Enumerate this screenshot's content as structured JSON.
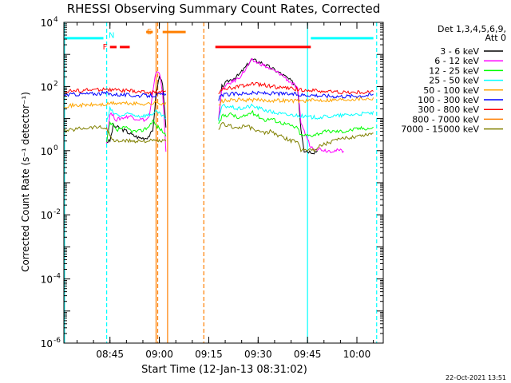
{
  "chart_data": {
    "type": "line",
    "title": "RHESSI Observing Summary Count Rates, Corrected",
    "xlabel": "Start Time (12-Jan-13 08:31:02)",
    "ylabel": "Corrected Count Rate (s⁻¹ detector⁻¹)",
    "x_unit": "minutes after 08:31:02 on 12-Jan-13",
    "xlim": [
      0,
      97
    ],
    "ylim": [
      1e-06,
      10000
    ],
    "yscale": "log",
    "xticks": [
      {
        "label": "08:45",
        "x": 14
      },
      {
        "label": "09:00",
        "x": 29
      },
      {
        "label": "09:15",
        "x": 44
      },
      {
        "label": "09:30",
        "x": 59
      },
      {
        "label": "09:45",
        "x": 74
      },
      {
        "label": "10:00",
        "x": 89
      }
    ],
    "yticks": [
      {
        "base": "10",
        "exp": "4",
        "value": 10000
      },
      {
        "base": "10",
        "exp": "2",
        "value": 100
      },
      {
        "base": "10",
        "exp": "0",
        "value": 1
      },
      {
        "base": "10",
        "exp": "-2",
        "value": 0.01
      },
      {
        "base": "10",
        "exp": "-4",
        "value": 0.0001
      },
      {
        "base": "10",
        "exp": "-6",
        "value": 1e-06
      }
    ],
    "legend_header": [
      "Det 1,3,4,5,6,9,",
      "Att 0"
    ],
    "legend_position": "right",
    "grid": false,
    "timestamp": "22-Oct-2021 13:51",
    "series": [
      {
        "name": "3 - 6 keV",
        "color": "#000000",
        "points": [
          [
            13,
            1.9
          ],
          [
            14,
            2
          ],
          [
            15,
            6
          ],
          [
            17,
            5
          ],
          [
            19,
            4
          ],
          [
            21,
            3
          ],
          [
            23,
            2.5
          ],
          [
            25,
            2.5
          ],
          [
            26,
            3
          ],
          [
            27,
            4
          ],
          [
            28,
            60
          ],
          [
            29,
            200
          ],
          [
            30,
            130
          ],
          [
            31,
            5
          ],
          [
            47,
            8
          ],
          [
            48,
            100
          ],
          [
            50,
            150
          ],
          [
            53,
            220
          ],
          [
            55,
            380
          ],
          [
            57,
            700
          ],
          [
            60,
            550
          ],
          [
            62,
            420
          ],
          [
            64,
            330
          ],
          [
            66,
            250
          ],
          [
            68,
            180
          ],
          [
            70,
            120
          ],
          [
            71,
            90
          ],
          [
            72,
            5
          ],
          [
            73,
            1
          ],
          [
            76,
            0.9
          ],
          [
            77,
            1
          ]
        ]
      },
      {
        "name": "6 - 12 keV",
        "color": "#ff00ff",
        "points": [
          [
            13,
            1.9
          ],
          [
            14,
            15
          ],
          [
            15,
            12
          ],
          [
            16,
            9
          ],
          [
            17,
            10
          ],
          [
            20,
            12
          ],
          [
            22,
            10
          ],
          [
            25,
            9
          ],
          [
            26,
            12
          ],
          [
            27,
            60
          ],
          [
            28,
            300
          ],
          [
            29,
            280
          ],
          [
            30,
            60
          ],
          [
            31,
            1
          ],
          [
            47,
            12
          ],
          [
            48,
            80
          ],
          [
            50,
            120
          ],
          [
            53,
            180
          ],
          [
            55,
            320
          ],
          [
            57,
            650
          ],
          [
            60,
            500
          ],
          [
            62,
            380
          ],
          [
            64,
            300
          ],
          [
            66,
            240
          ],
          [
            68,
            160
          ],
          [
            70,
            110
          ],
          [
            71,
            80
          ],
          [
            72,
            8
          ],
          [
            73,
            4
          ],
          [
            75,
            1.3
          ],
          [
            80,
            1
          ],
          [
            85,
            1
          ]
        ]
      },
      {
        "name": "12 - 25 keV",
        "color": "#00ff00",
        "points": [
          [
            0,
            1.7
          ],
          [
            13,
            1.8
          ],
          [
            14,
            7
          ],
          [
            15,
            6
          ],
          [
            16,
            4
          ],
          [
            17,
            5
          ],
          [
            19,
            5
          ],
          [
            21,
            4
          ],
          [
            23,
            4
          ],
          [
            25,
            5
          ],
          [
            26,
            6
          ],
          [
            27,
            9
          ],
          [
            28,
            6
          ],
          [
            29,
            5
          ],
          [
            30,
            4
          ],
          [
            31,
            3
          ],
          [
            47,
            6
          ],
          [
            48,
            12
          ],
          [
            51,
            14
          ],
          [
            53,
            10
          ],
          [
            55,
            12
          ],
          [
            57,
            16
          ],
          [
            59,
            12
          ],
          [
            61,
            9
          ],
          [
            63,
            10
          ],
          [
            65,
            8
          ],
          [
            67,
            7
          ],
          [
            69,
            6
          ],
          [
            71,
            5
          ],
          [
            72,
            3
          ],
          [
            75,
            3
          ],
          [
            80,
            4
          ],
          [
            85,
            4
          ],
          [
            90,
            5
          ],
          [
            94,
            5
          ]
        ]
      },
      {
        "name": "25 - 50 keV",
        "color": "#00ffff",
        "points": [
          [
            0,
            6
          ],
          [
            13,
            8
          ],
          [
            14,
            20
          ],
          [
            15,
            15
          ],
          [
            17,
            12
          ],
          [
            20,
            14
          ],
          [
            23,
            12
          ],
          [
            26,
            13
          ],
          [
            28,
            16
          ],
          [
            29,
            14
          ],
          [
            30,
            12
          ],
          [
            31,
            10
          ],
          [
            47,
            8
          ],
          [
            48,
            25
          ],
          [
            50,
            24
          ],
          [
            53,
            20
          ],
          [
            55,
            22
          ],
          [
            57,
            25
          ],
          [
            60,
            20
          ],
          [
            63,
            16
          ],
          [
            66,
            14
          ],
          [
            68,
            13
          ],
          [
            70,
            13
          ],
          [
            72,
            12
          ],
          [
            74,
            11
          ],
          [
            78,
            11
          ],
          [
            82,
            12
          ],
          [
            86,
            13
          ],
          [
            90,
            14
          ],
          [
            94,
            15
          ]
        ]
      },
      {
        "name": "50 - 100 keV",
        "color": "#ffa500",
        "points": [
          [
            0,
            25
          ],
          [
            5,
            26
          ],
          [
            10,
            27
          ],
          [
            13,
            27
          ],
          [
            14,
            30
          ],
          [
            18,
            30
          ],
          [
            22,
            29
          ],
          [
            26,
            29
          ],
          [
            28,
            31
          ],
          [
            30,
            30
          ],
          [
            31,
            29
          ],
          [
            47,
            24
          ],
          [
            48,
            35
          ],
          [
            53,
            38
          ],
          [
            57,
            38
          ],
          [
            61,
            37
          ],
          [
            66,
            37
          ],
          [
            70,
            36
          ],
          [
            74,
            36
          ],
          [
            78,
            38
          ],
          [
            82,
            38
          ],
          [
            86,
            40
          ],
          [
            90,
            42
          ],
          [
            94,
            42
          ]
        ]
      },
      {
        "name": "100 - 300 keV",
        "color": "#0000ff",
        "points": [
          [
            0,
            55
          ],
          [
            5,
            58
          ],
          [
            10,
            60
          ],
          [
            13,
            62
          ],
          [
            14,
            58
          ],
          [
            18,
            55
          ],
          [
            22,
            52
          ],
          [
            26,
            52
          ],
          [
            28,
            54
          ],
          [
            30,
            55
          ],
          [
            31,
            55
          ],
          [
            47,
            40
          ],
          [
            48,
            55
          ],
          [
            53,
            60
          ],
          [
            57,
            62
          ],
          [
            61,
            62
          ],
          [
            65,
            60
          ],
          [
            69,
            58
          ],
          [
            72,
            55
          ],
          [
            75,
            55
          ],
          [
            78,
            52
          ],
          [
            82,
            50
          ],
          [
            86,
            50
          ],
          [
            90,
            52
          ],
          [
            94,
            55
          ]
        ]
      },
      {
        "name": "300 - 800 keV",
        "color": "#ff0000",
        "points": [
          [
            0,
            70
          ],
          [
            5,
            75
          ],
          [
            10,
            80
          ],
          [
            13,
            85
          ],
          [
            14,
            78
          ],
          [
            18,
            75
          ],
          [
            22,
            70
          ],
          [
            26,
            65
          ],
          [
            28,
            68
          ],
          [
            30,
            70
          ],
          [
            31,
            70
          ],
          [
            47,
            60
          ],
          [
            48,
            80
          ],
          [
            53,
            100
          ],
          [
            57,
            120
          ],
          [
            61,
            110
          ],
          [
            65,
            95
          ],
          [
            69,
            85
          ],
          [
            72,
            80
          ],
          [
            75,
            75
          ],
          [
            78,
            72
          ],
          [
            82,
            68
          ],
          [
            86,
            65
          ],
          [
            90,
            65
          ],
          [
            94,
            68
          ]
        ]
      },
      {
        "name": "800 - 7000 keV",
        "color": "#ff7f00",
        "points": []
      },
      {
        "name": "7000 - 15000 keV",
        "color": "#808000",
        "points": [
          [
            0,
            4
          ],
          [
            5,
            5
          ],
          [
            10,
            5.5
          ],
          [
            13,
            5
          ],
          [
            14,
            3
          ],
          [
            15,
            2
          ],
          [
            17,
            2
          ],
          [
            19,
            2
          ],
          [
            21,
            2
          ],
          [
            23,
            2
          ],
          [
            25,
            2
          ],
          [
            27,
            2
          ],
          [
            29,
            2
          ],
          [
            31,
            2
          ],
          [
            47,
            4
          ],
          [
            48,
            7
          ],
          [
            50,
            6
          ],
          [
            53,
            5
          ],
          [
            55,
            6
          ],
          [
            57,
            5
          ],
          [
            59,
            4
          ],
          [
            61,
            3.5
          ],
          [
            63,
            4
          ],
          [
            65,
            3
          ],
          [
            67,
            2.5
          ],
          [
            69,
            2
          ],
          [
            71,
            2
          ],
          [
            72,
            1
          ],
          [
            73,
            1.2
          ],
          [
            76,
            1
          ],
          [
            78,
            1.5
          ],
          [
            82,
            2
          ],
          [
            86,
            2.5
          ],
          [
            90,
            3
          ],
          [
            94,
            3.5
          ]
        ]
      }
    ],
    "bars": [
      {
        "letter": "",
        "color": "#00ffff",
        "y": 3200,
        "ranges": [
          [
            0,
            12
          ],
          [
            75,
            94
          ]
        ]
      },
      {
        "letter": "N",
        "color": "#00ffff",
        "y": 3900,
        "ranges": []
      },
      {
        "letter": "F",
        "color": "#ff0000",
        "y": 1700,
        "ranges": [
          [
            14,
            16
          ],
          [
            17,
            20
          ]
        ]
      },
      {
        "letter": "S",
        "color": "#ff7f00",
        "y": 5000,
        "ranges": [
          [
            25,
            27
          ],
          [
            30,
            37
          ]
        ]
      },
      {
        "letter": "",
        "color": "#ff0000",
        "y": 1700,
        "ranges": [
          [
            46,
            75
          ]
        ]
      }
    ],
    "vlines": [
      {
        "x": 0.2,
        "color": "#00ffff",
        "dashed": false
      },
      {
        "x": 13,
        "color": "#00ffff",
        "dashed": true
      },
      {
        "x": 28,
        "color": "#ff7f00",
        "dashed": false
      },
      {
        "x": 28.5,
        "color": "#ff7f00",
        "dashed": true
      },
      {
        "x": 31.5,
        "color": "#ff7f00",
        "dashed": false
      },
      {
        "x": 42.5,
        "color": "#ff7f00",
        "dashed": true
      },
      {
        "x": 74,
        "color": "#00ffff",
        "dashed": false
      },
      {
        "x": 95,
        "color": "#00ffff",
        "dashed": true
      }
    ]
  }
}
